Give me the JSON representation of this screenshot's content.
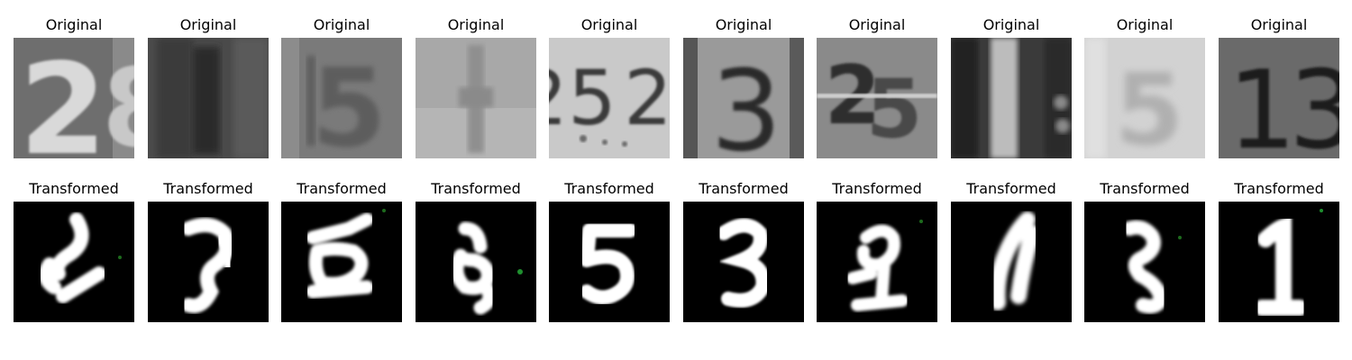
{
  "figure": {
    "rows": [
      {
        "title": "Original",
        "background": "gray-photo",
        "panels": [
          {
            "digit": "2"
          },
          {
            "digit": "1"
          },
          {
            "digit": "5"
          },
          {
            "digit": "1"
          },
          {
            "digit": "5"
          },
          {
            "digit": "3"
          },
          {
            "digit": "2"
          },
          {
            "digit": "1"
          },
          {
            "digit": "5"
          },
          {
            "digit": "1"
          }
        ]
      },
      {
        "title": "Transformed",
        "background": "black",
        "panels": [
          {
            "digit": "2"
          },
          {
            "digit": "5"
          },
          {
            "digit": "8"
          },
          {
            "digit": "9"
          },
          {
            "digit": "5"
          },
          {
            "digit": "3"
          },
          {
            "digit": "9"
          },
          {
            "digit": "1"
          },
          {
            "digit": "5"
          },
          {
            "digit": "1"
          }
        ]
      }
    ]
  },
  "colors": {
    "background": "#ffffff",
    "title_text": "#000000",
    "transformed_bg": "#000000",
    "transformed_digit": "#ffffff"
  }
}
